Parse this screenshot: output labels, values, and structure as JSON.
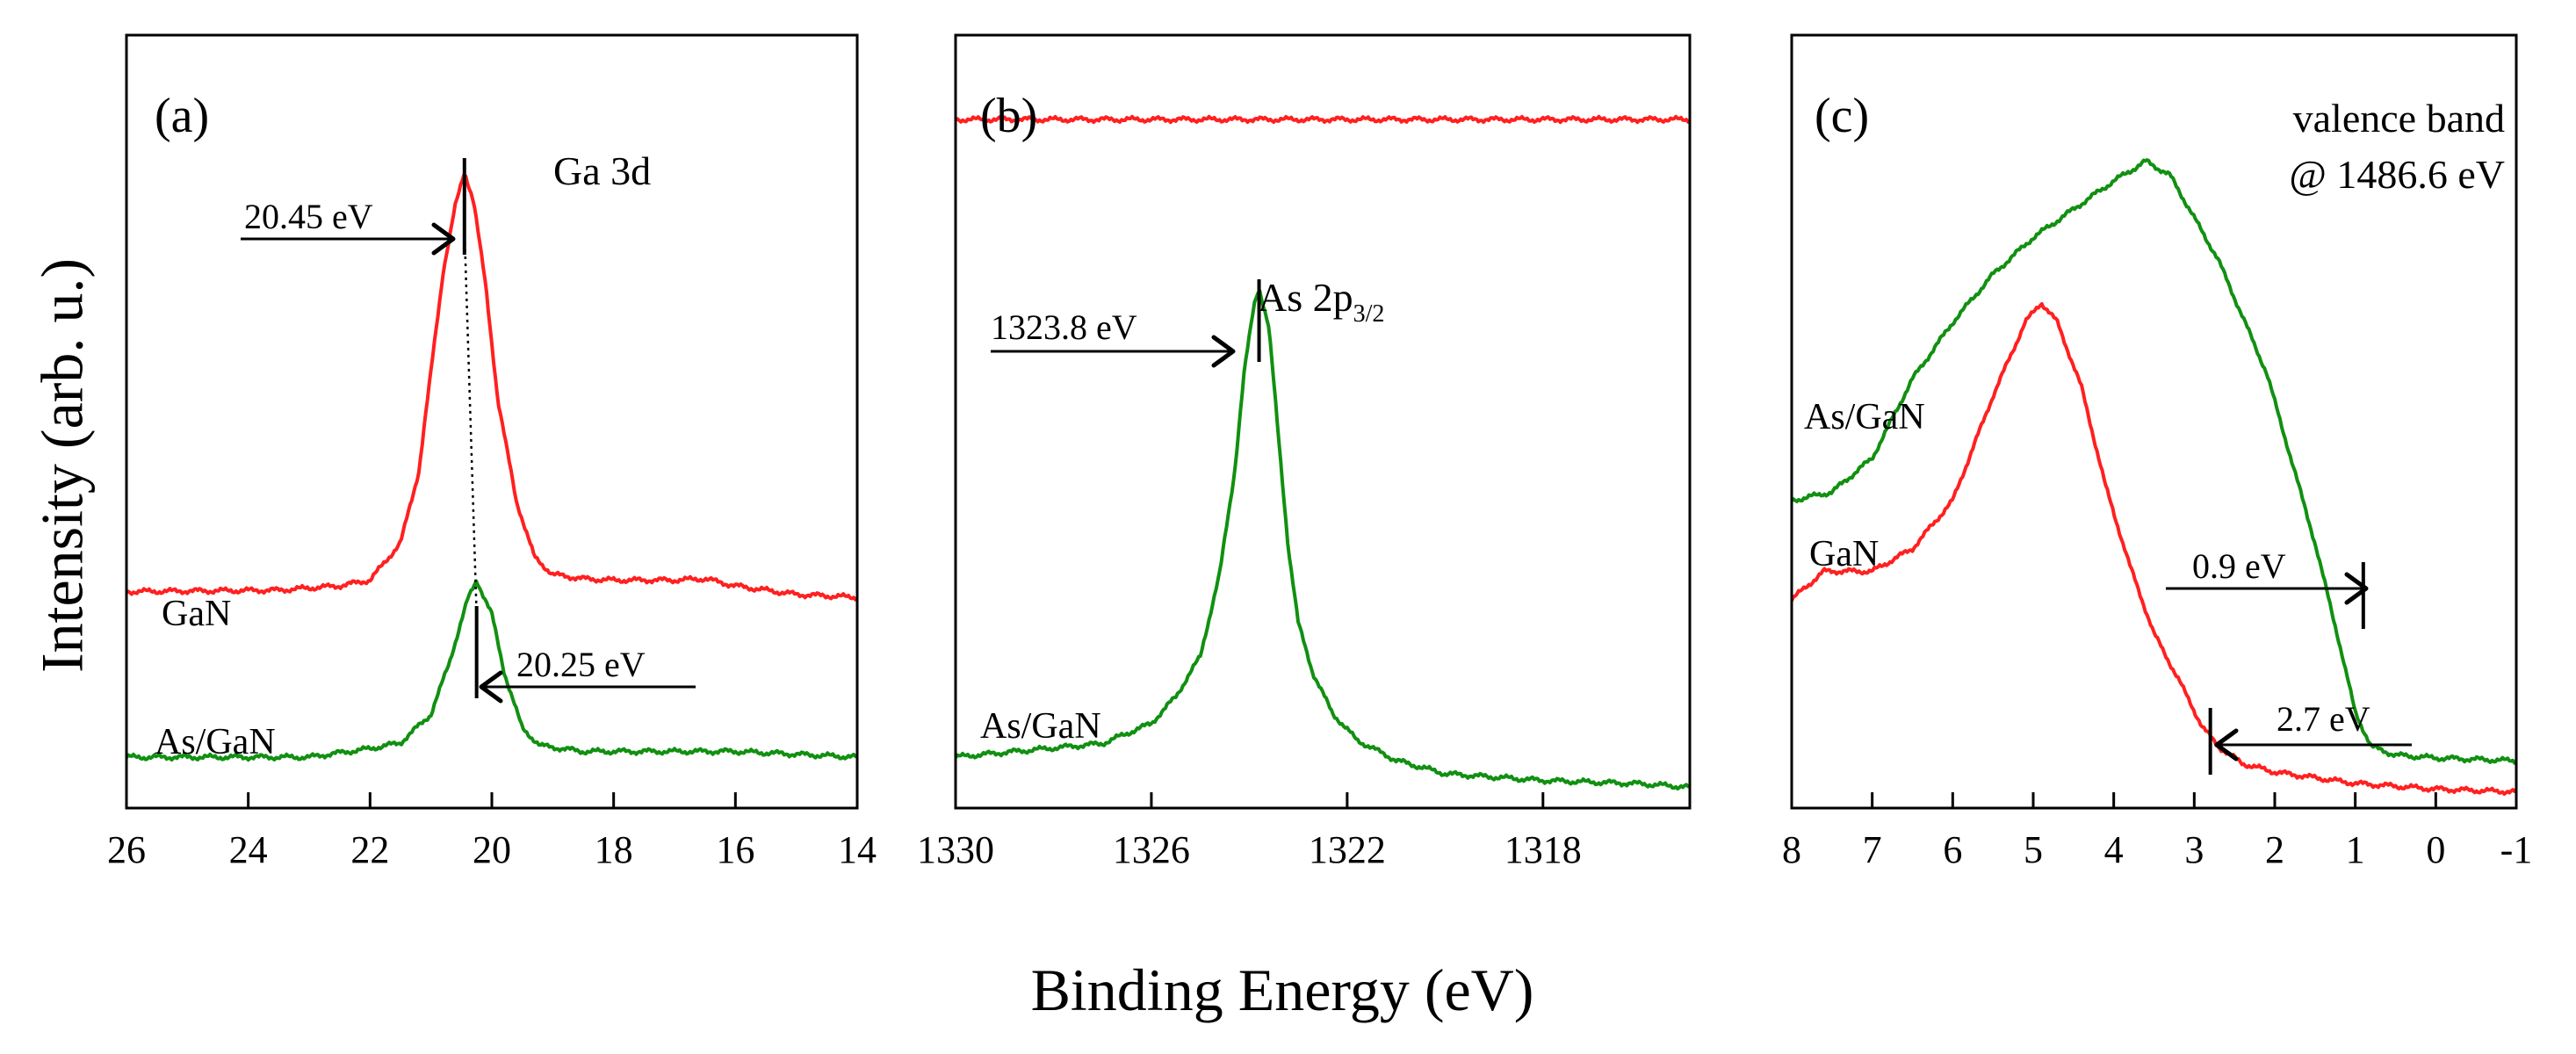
{
  "figure": {
    "ylabel": "Intensity (arb. u.)",
    "xlabel": "Binding Energy (eV)"
  },
  "colors": {
    "GaN": "#ff2020",
    "As_GaN": "#119011"
  },
  "chart_data": [
    {
      "type": "line",
      "panel": "(a)",
      "title": "Ga 3d",
      "xlim": [
        26,
        14
      ],
      "xticks": [
        "26",
        "24",
        "22",
        "20",
        "18",
        "16",
        "14"
      ],
      "ylabel": "Intensity (arb. u.)",
      "series": [
        {
          "name": "GaN",
          "color": "#ff2020",
          "x": [
            26,
            23.5,
            22.5,
            22.0,
            21.5,
            21.2,
            21.0,
            20.8,
            20.6,
            20.45,
            20.3,
            20.1,
            19.9,
            19.6,
            19.3,
            19.0,
            18.5,
            18.0,
            17.0,
            16.5,
            16.0,
            15.0,
            14.0
          ],
          "y": [
            0.58,
            0.585,
            0.6,
            0.62,
            0.75,
            1.0,
            1.35,
            1.7,
            1.93,
            2.05,
            1.95,
            1.65,
            1.25,
            0.9,
            0.7,
            0.64,
            0.625,
            0.62,
            0.62,
            0.625,
            0.6,
            0.57,
            0.56
          ]
        },
        {
          "name": "As/GaN",
          "color": "#119011",
          "x": [
            26,
            23.0,
            22.0,
            21.5,
            21.0,
            20.7,
            20.4,
            20.25,
            20.0,
            19.8,
            19.5,
            19.2,
            18.5,
            17.0,
            16.0,
            15.0,
            14.0
          ],
          "y": [
            0.0,
            0.0,
            0.03,
            0.05,
            0.15,
            0.33,
            0.55,
            0.62,
            0.5,
            0.3,
            0.1,
            0.04,
            0.02,
            0.02,
            0.02,
            0.01,
            0.0
          ]
        }
      ],
      "annotations": [
        "20.45 eV",
        "20.25 eV"
      ],
      "series_labels": [
        "GaN",
        "As/GaN"
      ]
    },
    {
      "type": "line",
      "panel": "(b)",
      "title": "As 2p3/2",
      "title_main": "As 2p",
      "title_sub": "3/2",
      "xlim": [
        1330,
        1315
      ],
      "xticks": [
        "1330",
        "1326",
        "1322",
        "1318"
      ],
      "series": [
        {
          "name": "GaN",
          "color": "#ff2020",
          "x": [
            1330,
            1315
          ],
          "y": [
            2.0,
            2.0
          ]
        },
        {
          "name": "As/GaN",
          "color": "#119011",
          "x": [
            1330,
            1327.0,
            1326.0,
            1325.5,
            1325.0,
            1324.6,
            1324.3,
            1324.1,
            1323.9,
            1323.8,
            1323.6,
            1323.4,
            1323.2,
            1323.0,
            1322.7,
            1322.3,
            1321.8,
            1321.0,
            1320.0,
            1318.0,
            1316.0,
            1315.0
          ],
          "y": [
            0.1,
            0.14,
            0.2,
            0.28,
            0.4,
            0.65,
            0.95,
            1.25,
            1.45,
            1.5,
            1.38,
            1.05,
            0.72,
            0.5,
            0.35,
            0.23,
            0.15,
            0.09,
            0.05,
            0.03,
            0.02,
            0.01
          ]
        }
      ],
      "annotations": [
        "1323.8 eV"
      ],
      "series_labels": [
        "As/GaN"
      ]
    },
    {
      "type": "line",
      "panel": "(c)",
      "title": "valence band",
      "subtitle": "@ 1486.6 eV",
      "xlim": [
        8,
        -1
      ],
      "xticks": [
        "8",
        "7",
        "6",
        "5",
        "4",
        "3",
        "2",
        "1",
        "0",
        "-1"
      ],
      "series": [
        {
          "name": "As/GaN",
          "color": "#119011",
          "x": [
            8.0,
            7.5,
            7.0,
            6.5,
            6.0,
            5.5,
            5.0,
            4.5,
            4.0,
            3.6,
            3.3,
            3.0,
            2.7,
            2.4,
            2.1,
            1.8,
            1.5,
            1.2,
            1.0,
            0.8,
            0.5,
            0.0,
            -1.0
          ],
          "y": [
            1.05,
            1.08,
            1.2,
            1.48,
            1.68,
            1.85,
            1.98,
            2.08,
            2.18,
            2.25,
            2.2,
            2.05,
            1.9,
            1.7,
            1.5,
            1.2,
            0.9,
            0.55,
            0.3,
            0.18,
            0.15,
            0.14,
            0.13
          ]
        },
        {
          "name": "GaN",
          "color": "#ff2020",
          "x": [
            8.0,
            7.6,
            7.0,
            6.5,
            6.0,
            5.5,
            5.1,
            4.9,
            4.7,
            4.4,
            4.1,
            3.8,
            3.5,
            3.2,
            2.9,
            2.7,
            2.4,
            2.0,
            1.5,
            1.0,
            0.0,
            -1.0
          ],
          "y": [
            0.7,
            0.8,
            0.8,
            0.88,
            1.05,
            1.42,
            1.68,
            1.75,
            1.68,
            1.45,
            1.1,
            0.82,
            0.58,
            0.42,
            0.25,
            0.18,
            0.12,
            0.09,
            0.07,
            0.05,
            0.03,
            0.02
          ]
        }
      ],
      "annotations": [
        "0.9 eV",
        "2.7 eV"
      ],
      "series_labels": [
        "As/GaN",
        "GaN"
      ]
    }
  ]
}
